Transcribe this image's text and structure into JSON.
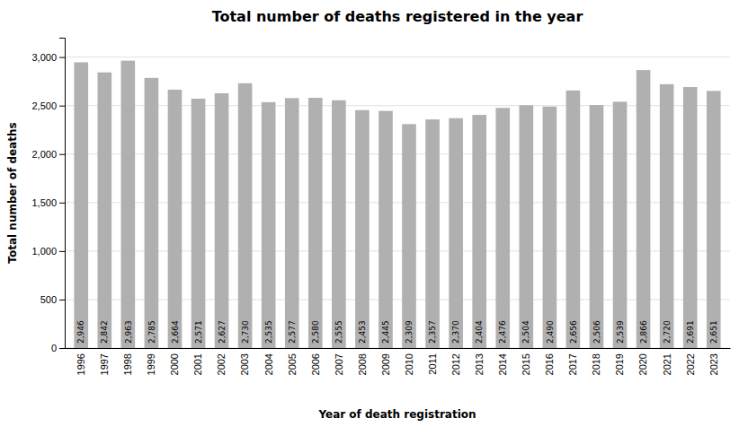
{
  "chart_data": {
    "type": "bar",
    "title": "Total number of deaths registered in the year",
    "xlabel": "Year of death registration",
    "ylabel": "Total number of deaths",
    "categories": [
      "1996",
      "1997",
      "1998",
      "1999",
      "2000",
      "2001",
      "2002",
      "2003",
      "2004",
      "2005",
      "2006",
      "2007",
      "2008",
      "2009",
      "2010",
      "2011",
      "2012",
      "2013",
      "2014",
      "2015",
      "2016",
      "2017",
      "2018",
      "2019",
      "2020",
      "2021",
      "2022",
      "2023"
    ],
    "values": [
      2946,
      2842,
      2963,
      2785,
      2664,
      2571,
      2627,
      2730,
      2535,
      2577,
      2580,
      2555,
      2453,
      2445,
      2309,
      2357,
      2370,
      2404,
      2476,
      2504,
      2490,
      2656,
      2506,
      2539,
      2866,
      2720,
      2691,
      2651
    ],
    "value_labels": [
      "2,946",
      "2,842",
      "2,963",
      "2,785",
      "2,664",
      "2,571",
      "2,627",
      "2,730",
      "2,535",
      "2,577",
      "2,580",
      "2,555",
      "2,453",
      "2,445",
      "2,309",
      "2,357",
      "2,370",
      "2,404",
      "2,476",
      "2,504",
      "2,490",
      "2,656",
      "2,506",
      "2,539",
      "2,866",
      "2,720",
      "2,691",
      "2,651"
    ],
    "color": "#b0b0b0",
    "ylim": [
      0,
      3200
    ],
    "yticks": [
      0,
      500,
      {
        "value": 1000,
        "label": "1,000"
      },
      {
        "value": 1500,
        "label": "1,500"
      },
      {
        "value": 2000,
        "label": "2,000"
      },
      {
        "value": 2500,
        "label": "2,500"
      },
      {
        "value": 3000,
        "label": "3,000"
      }
    ],
    "grid": true,
    "data_labels": true
  }
}
